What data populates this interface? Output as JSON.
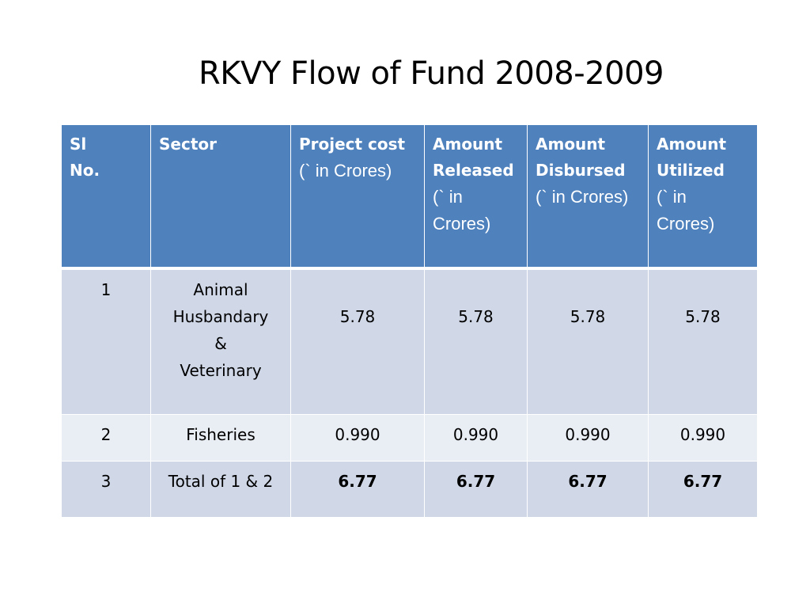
{
  "slide": {
    "title": "RKVY Flow of Fund 2008-2009"
  },
  "table": {
    "headers": [
      {
        "line1": "Sl",
        "line2": "No.",
        "unit": ""
      },
      {
        "line1": "Sector",
        "line2": "",
        "unit": ""
      },
      {
        "line1": "Project cost",
        "line2": "",
        "unit": "(` in Crores)"
      },
      {
        "line1": "Amount",
        "line2": "Released",
        "unit": "(` in Crores)"
      },
      {
        "line1": "Amount",
        "line2": "Disbursed",
        "unit": "(` in Crores)"
      },
      {
        "line1": "Amount",
        "line2": "Utilized",
        "unit": "(` in Crores)"
      }
    ],
    "rows": [
      {
        "sl": "1",
        "sector": [
          "Animal",
          "Husbandary",
          "&",
          "Veterinary"
        ],
        "project_cost": "5.78",
        "released": "5.78",
        "disbursed": "5.78",
        "utilized": "5.78"
      },
      {
        "sl": "2",
        "sector": [
          "Fisheries"
        ],
        "project_cost": "0.990",
        "released": "0.990",
        "disbursed": "0.990",
        "utilized": "0.990"
      },
      {
        "sl": "3",
        "sector": [
          "Total of 1 & 2"
        ],
        "project_cost": "6.77",
        "released": "6.77",
        "disbursed": "6.77",
        "utilized": "6.77"
      }
    ]
  },
  "colors": {
    "header_bg": "#4f81bd",
    "row_dark": "#d0d8e8",
    "row_light": "#e9edf4"
  }
}
